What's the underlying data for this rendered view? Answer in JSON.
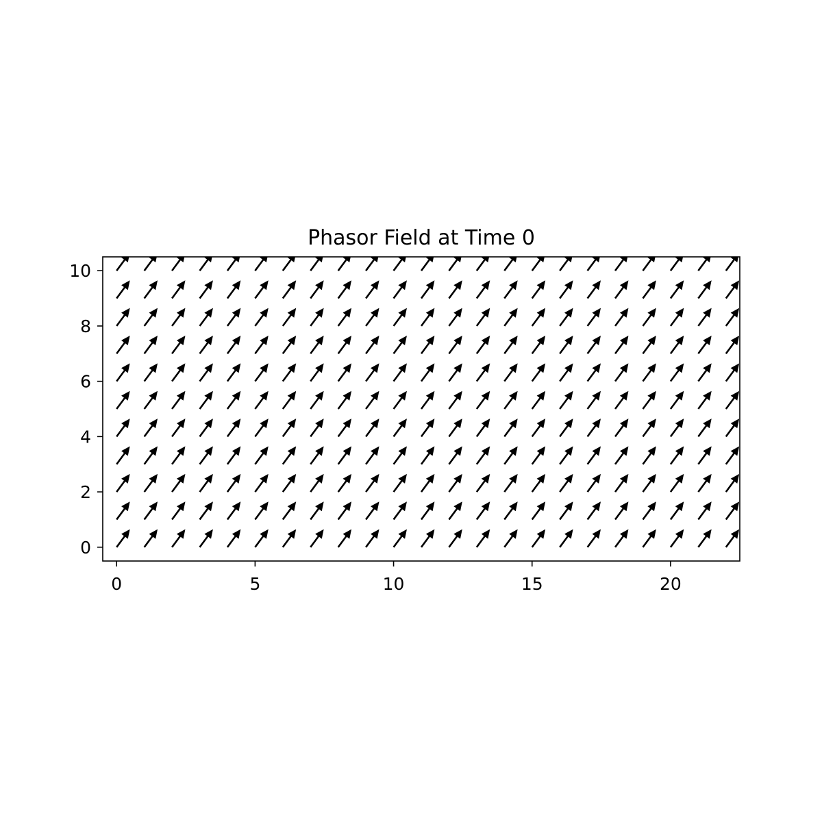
{
  "chart_data": {
    "type": "quiver",
    "title": "Phasor Field at Time 0",
    "xlabel": "",
    "ylabel": "",
    "xlim": [
      -0.5,
      22.5
    ],
    "ylim": [
      -0.5,
      10.5
    ],
    "x_ticks": [
      0,
      5,
      10,
      15,
      20
    ],
    "y_ticks": [
      0,
      2,
      4,
      6,
      8,
      10
    ],
    "grid": false,
    "legend": "none",
    "arrow_color": "#000000",
    "grid_x": [
      0,
      1,
      2,
      3,
      4,
      5,
      6,
      7,
      8,
      9,
      10,
      11,
      12,
      13,
      14,
      15,
      16,
      17,
      18,
      19,
      20,
      21,
      22
    ],
    "grid_y": [
      0,
      1,
      2,
      3,
      4,
      5,
      6,
      7,
      8,
      9,
      10
    ],
    "vector": {
      "u": 0.48,
      "v": 0.65,
      "note_same_for_all_points": true
    }
  }
}
